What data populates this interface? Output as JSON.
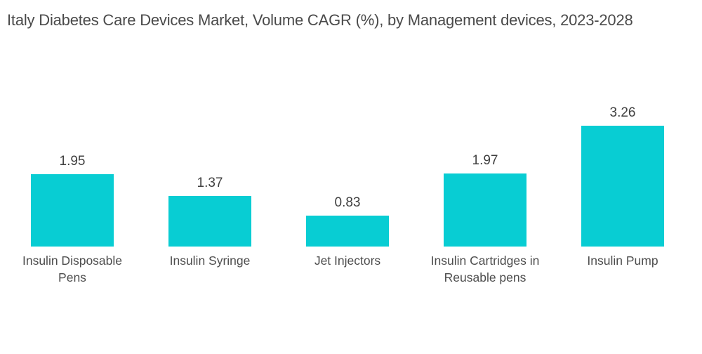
{
  "title": "Italy Diabetes Care Devices Market, Volume CAGR (%), by Management devices, 2023-2028",
  "chart_data": {
    "type": "bar",
    "title": "Italy Diabetes Care Devices Market, Volume CAGR (%), by Management devices, 2023-2028",
    "categories": [
      "Insulin Disposable Pens",
      "Insulin Syringe",
      "Jet Injectors",
      "Insulin Cartridges in Reusable pens",
      "Insulin Pump"
    ],
    "values": [
      1.95,
      1.37,
      0.83,
      1.97,
      3.26
    ],
    "value_labels": [
      "1.95",
      "1.37",
      "0.83",
      "1.97",
      "3.26"
    ],
    "xlabel": "",
    "ylabel": "",
    "ylim": [
      0,
      3.5
    ],
    "grid": false,
    "legend": false,
    "axes_hidden": true,
    "bar_color": "#08CDD3",
    "value_label_color": "#3f3f3f",
    "category_label_color": "#4d4d4d",
    "title_color": "#4a4a4a",
    "background_color": "#ffffff"
  }
}
